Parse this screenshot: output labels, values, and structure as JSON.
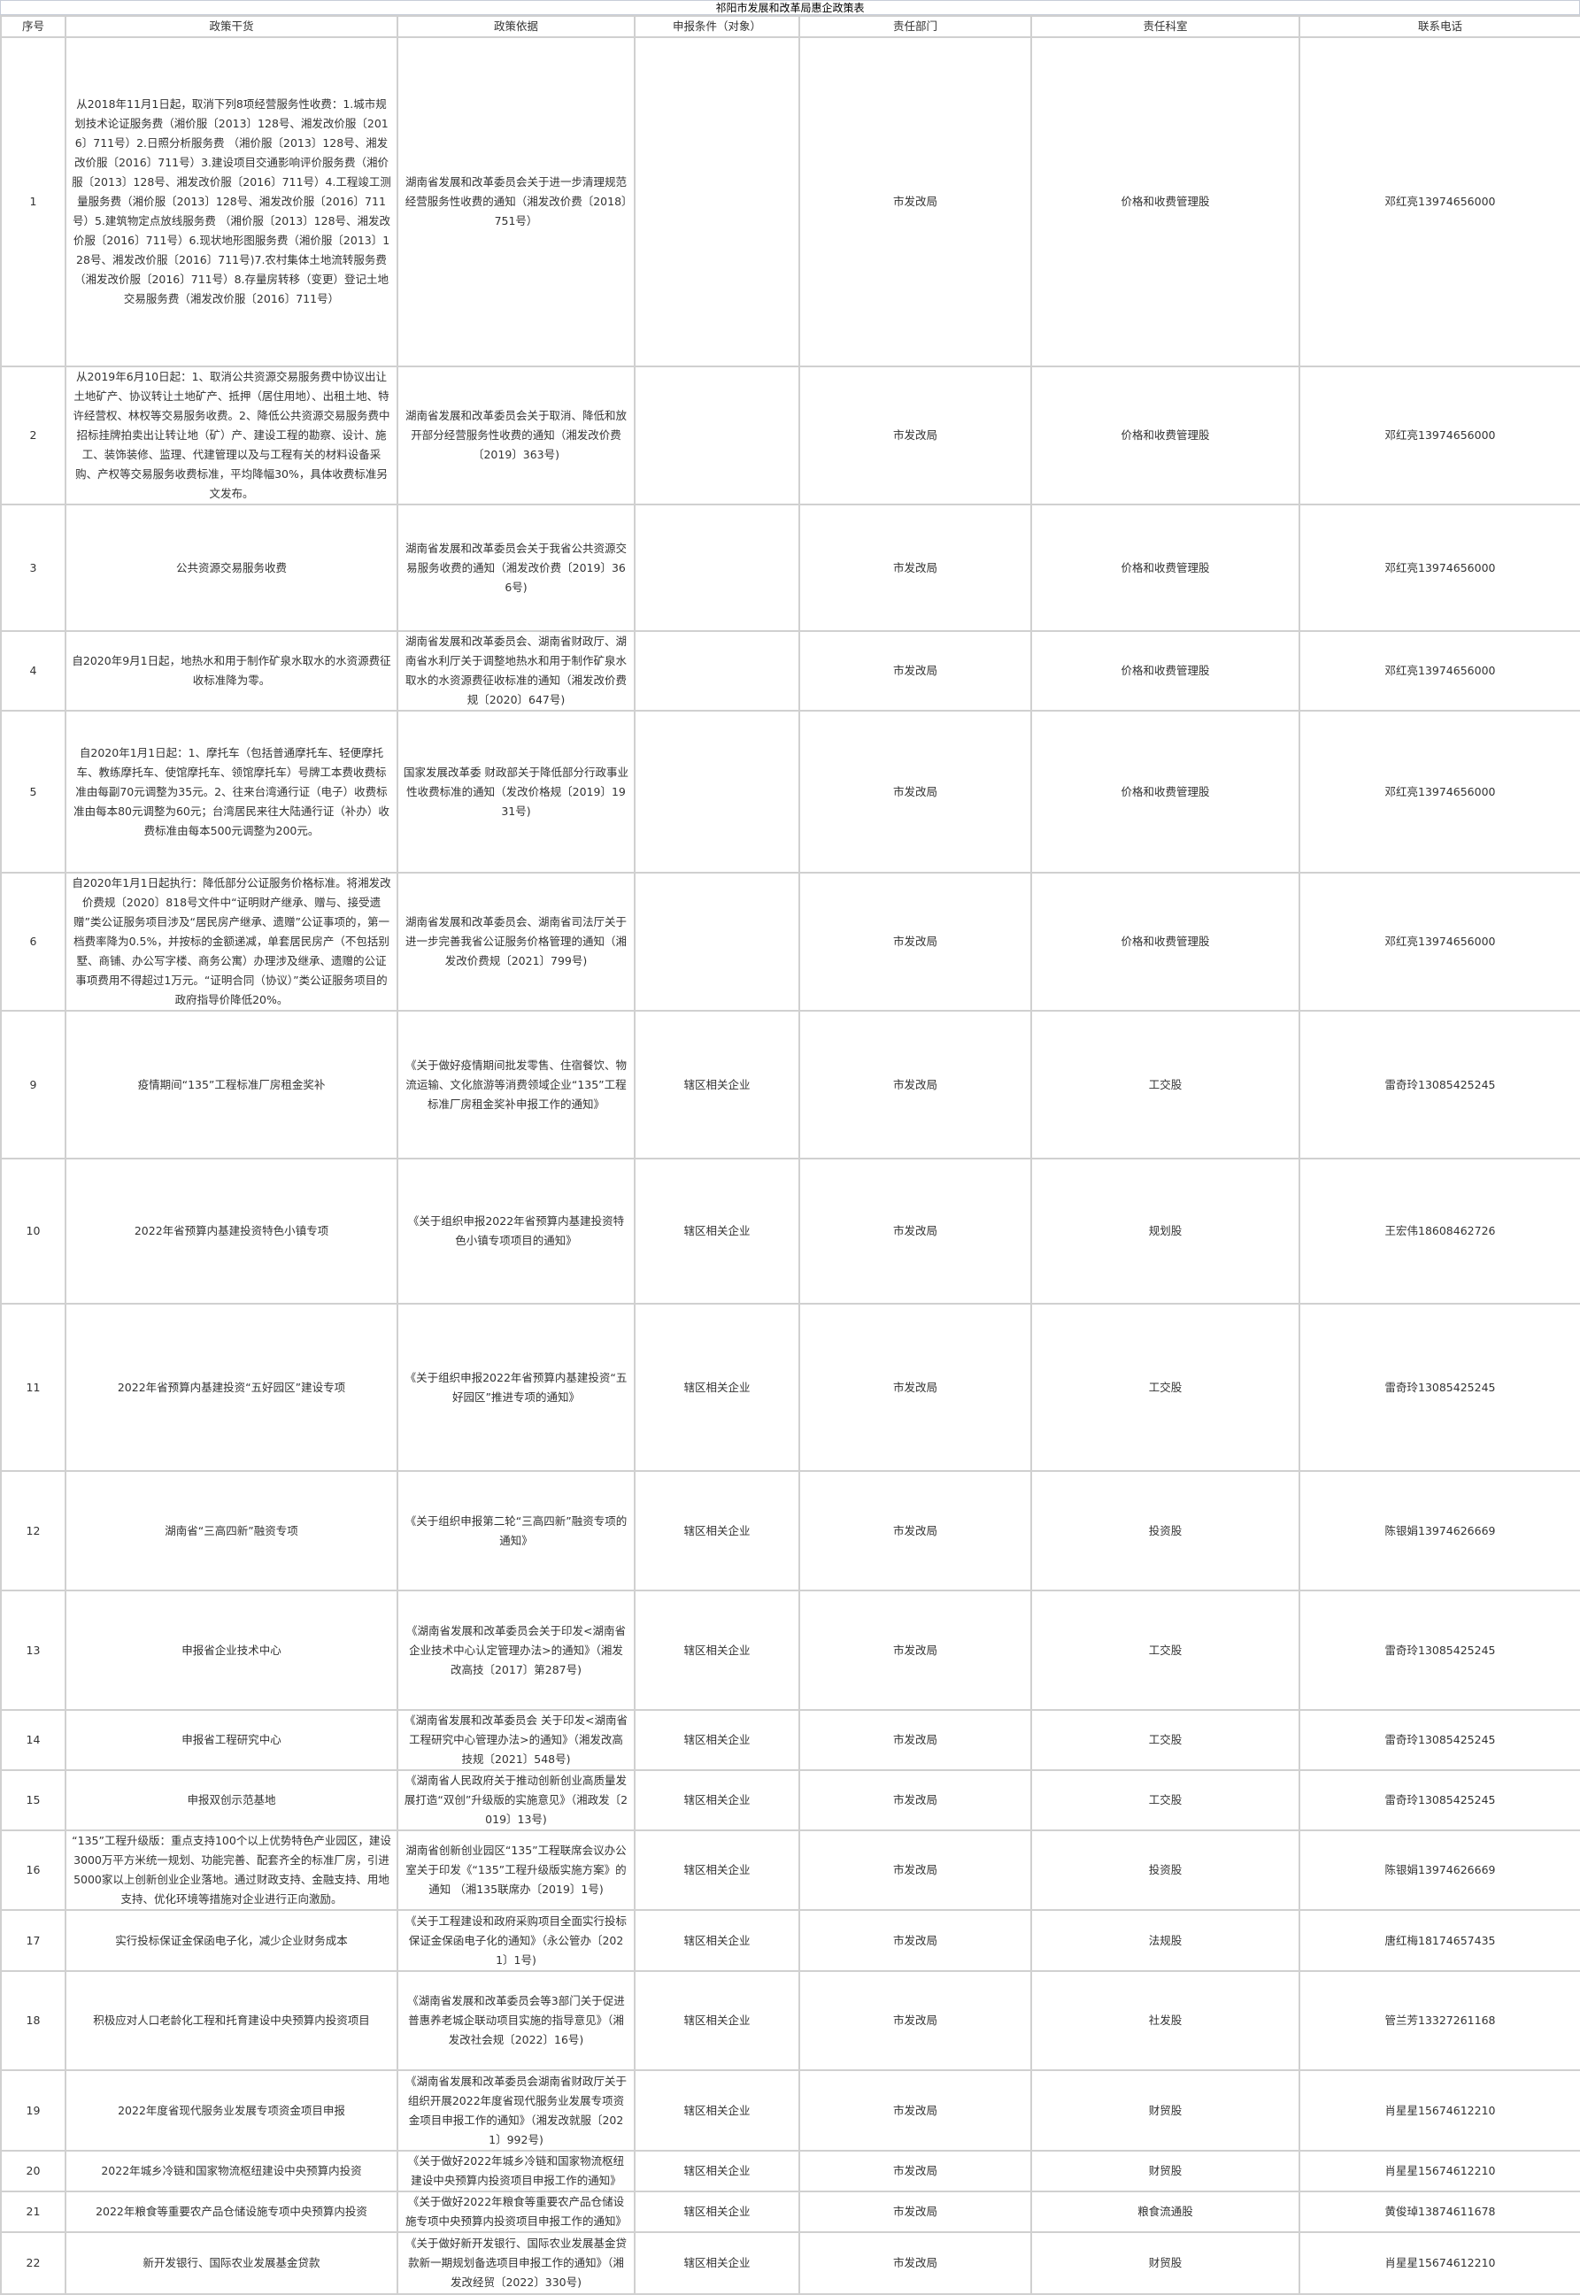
{
  "title": "祁阳市发展和改革局惠企政策表",
  "headers": [
    "序号",
    "政策干货",
    "政策依据",
    "申报条件（对象）",
    "责任部门",
    "责任科室",
    "联系电话"
  ],
  "rows": [
    {
      "no": "1",
      "content": "从2018年11月1日起，取消下列8项经营服务性收费：1.城市规划技术论证服务费（湘价服〔2013〕128号、湘发改价服〔2016〕711号）2.日照分析服务费 （湘价服〔2013〕128号、湘发改价服〔2016〕711号）3.建设项目交通影响评价服务费（湘价服〔2013〕128号、湘发改价服〔2016〕711号）4.工程竣工测量服务费（湘价服〔2013〕128号、湘发改价服〔2016〕711号）5.建筑物定点放线服务费 （湘价服〔2013〕128号、湘发改价服〔2016〕711号）6.现状地形图服务费（湘价服〔2013〕128号、湘发改价服〔2016〕711号)7.农村集体土地流转服务费（湘发改价服〔2016〕711号）8.存量房转移（变更）登记土地交易服务费（湘发改价服〔2016〕711号）",
      "basis": "湖南省发展和改革委员会关于进一步清理规范经营服务性收费的通知（湘发改价费〔2018〕751号）",
      "target": "",
      "dept": "市发改局",
      "office": "价格和收费管理股",
      "phone": "邓红亮13974656000"
    },
    {
      "no": "2",
      "content": "从2019年6月10日起：1、取消公共资源交易服务费中协议出让土地矿产、协议转让土地矿产、抵押（居住用地）、出租土地、特许经营权、林权等交易服务收费。2、降低公共资源交易服务费中招标挂牌拍卖出让转让地（矿）产、建设工程的勘察、设计、施工、装饰装修、监理、代建管理以及与工程有关的材料设备采购、产权等交易服务收费标准，平均降幅30%，具体收费标准另文发布。",
      "basis": "湖南省发展和改革委员会关于取消、降低和放开部分经营服务性收费的通知（湘发改价费〔2019〕363号)",
      "target": "",
      "dept": "市发改局",
      "office": "价格和收费管理股",
      "phone": "邓红亮13974656000"
    },
    {
      "no": "3",
      "content": "公共资源交易服务收费",
      "basis": "湖南省发展和改革委员会关于我省公共资源交易服务收费的通知（湘发改价费〔2019〕366号)",
      "target": "",
      "dept": "市发改局",
      "office": "价格和收费管理股",
      "phone": "邓红亮13974656000"
    },
    {
      "no": "4",
      "content": "自2020年9月1日起，地热水和用于制作矿泉水取水的水资源费征收标准降为零。",
      "basis": "湖南省发展和改革委员会、湖南省财政厅、湖南省水利厅关于调整地热水和用于制作矿泉水取水的水资源费征收标准的通知（湘发改价费规〔2020〕647号)",
      "target": "",
      "dept": "市发改局",
      "office": "价格和收费管理股",
      "phone": "邓红亮13974656000"
    },
    {
      "no": "5",
      "content": "自2020年1月1日起：1、摩托车（包括普通摩托车、轻便摩托车、教练摩托车、使馆摩托车、领馆摩托车）号牌工本费收费标准由每副70元调整为35元。2、往来台湾通行证（电子）收费标准由每本80元调整为60元；台湾居民来往大陆通行证（补办）收费标准由每本500元调整为200元。",
      "basis": "国家发展改革委 财政部关于降低部分行政事业性收费标准的通知（发改价格规〔2019〕1931号)",
      "target": "",
      "dept": "市发改局",
      "office": "价格和收费管理股",
      "phone": "邓红亮13974656000"
    },
    {
      "no": "6",
      "content": "自2020年1月1日起执行：降低部分公证服务价格标准。将湘发改价费规〔2020〕818号文件中“证明财产继承、赠与、接受遗赠”类公证服务项目涉及“居民房产继承、遗赠”公证事项的，第一档费率降为0.5%，并按标的金额递减，单套居民房产（不包括别墅、商铺、办公写字楼、商务公寓）办理涉及继承、遗赠的公证事项费用不得超过1万元。“证明合同（协议）”类公证服务项目的政府指导价降低20%。",
      "basis": "湖南省发展和改革委员会、湖南省司法厅关于进一步完善我省公证服务价格管理的通知（湘发改价费规〔2021〕799号)",
      "target": "",
      "dept": "市发改局",
      "office": "价格和收费管理股",
      "phone": "邓红亮13974656000"
    },
    {
      "no": "9",
      "content": "疫情期间“135”工程标准厂房租金奖补",
      "basis": "《关于做好疫情期间批发零售、住宿餐饮、物流运输、文化旅游等消费领域企业“135”工程标准厂房租金奖补申报工作的通知》",
      "target": "辖区相关企业",
      "dept": "市发改局",
      "office": "工交股",
      "phone": "雷奇玲13085425245"
    },
    {
      "no": "10",
      "content": "2022年省预算内基建投资特色小镇专项",
      "basis": "《关于组织申报2022年省预算内基建投资特色小镇专项项目的通知》",
      "target": "辖区相关企业",
      "dept": "市发改局",
      "office": "规划股",
      "phone": "王宏伟18608462726"
    },
    {
      "no": "11",
      "content": "2022年省预算内基建投资“五好园区”建设专项",
      "basis": "《关于组织申报2022年省预算内基建投资“五好园区”推进专项的通知》",
      "target": "辖区相关企业",
      "dept": "市发改局",
      "office": "工交股",
      "phone": "雷奇玲13085425245"
    },
    {
      "no": "12",
      "content": "湖南省“三高四新”融资专项",
      "basis": "《关于组织申报第二轮“三高四新”融资专项的通知》",
      "target": "辖区相关企业",
      "dept": "市发改局",
      "office": "投资股",
      "phone": "陈银娟13974626669"
    },
    {
      "no": "13",
      "content": "申报省企业技术中心",
      "basis": "《湖南省发展和改革委员会关于印发<湖南省企业技术中心认定管理办法>的通知》（湘发改高技〔2017〕第287号)",
      "target": "辖区相关企业",
      "dept": "市发改局",
      "office": "工交股",
      "phone": "雷奇玲13085425245"
    },
    {
      "no": "14",
      "content": "申报省工程研究中心",
      "basis": "《湖南省发展和改革委员会 关于印发<湖南省工程研究中心管理办法>的通知》（湘发改高技规〔2021〕548号)",
      "target": "辖区相关企业",
      "dept": "市发改局",
      "office": "工交股",
      "phone": "雷奇玲13085425245"
    },
    {
      "no": "15",
      "content": "申报双创示范基地",
      "basis": "《湖南省人民政府关于推动创新创业高质量发展打造“双创”升级版的实施意见》（湘政发〔2019〕13号)",
      "target": "辖区相关企业",
      "dept": "市发改局",
      "office": "工交股",
      "phone": "雷奇玲13085425245"
    },
    {
      "no": "16",
      "content": "“135”工程升级版：重点支持100个以上优势特色产业园区，建设3000万平方米统一规划、功能完善、配套齐全的标准厂房，引进5000家以上创新创业企业落地。通过财政支持、金融支持、用地支持、优化环境等措施对企业进行正向激励。",
      "basis": "湖南省创新创业园区“135”工程联席会议办公室关于印发《“135”工程升级版实施方案》的通知 （湘135联席办〔2019〕1号)",
      "target": "辖区相关企业",
      "dept": "市发改局",
      "office": "投资股",
      "phone": "陈银娟13974626669"
    },
    {
      "no": "17",
      "content": "实行投标保证金保函电子化，减少企业财务成本",
      "basis": "《关于工程建设和政府采购项目全面实行投标保证金保函电子化的通知》（永公管办〔2021〕1号)",
      "target": "辖区相关企业",
      "dept": "市发改局",
      "office": "法规股",
      "phone": "唐红梅18174657435"
    },
    {
      "no": "18",
      "content": "积极应对人口老龄化工程和托育建设中央预算内投资项目",
      "basis": "《湖南省发展和改革委员会等3部门关于促进普惠养老城企联动项目实施的指导意见》（湘发改社会规〔2022〕16号)",
      "target": "辖区相关企业",
      "dept": "市发改局",
      "office": "社发股",
      "phone": "管兰芳13327261168"
    },
    {
      "no": "19",
      "content": "2022年度省现代服务业发展专项资金项目申报",
      "basis": "《湖南省发展和改革委员会湖南省财政厅关于组织开展2022年度省现代服务业发展专项资金项目申报工作的通知》（湘发改就服〔2021〕992号)",
      "target": "辖区相关企业",
      "dept": "市发改局",
      "office": "财贸股",
      "phone": "肖星星15674612210"
    },
    {
      "no": "20",
      "content": "2022年城乡冷链和国家物流枢纽建设中央预算内投资",
      "basis": "《关于做好2022年城乡冷链和国家物流枢纽建设中央预算内投资项目申报工作的通知》",
      "target": "辖区相关企业",
      "dept": "市发改局",
      "office": "财贸股",
      "phone": "肖星星15674612210"
    },
    {
      "no": "21",
      "content": "2022年粮食等重要农产品仓储设施专项中央预算内投资",
      "basis": "《关于做好2022年粮食等重要农产品仓储设施专项中央预算内投资项目申报工作的通知》",
      "target": "辖区相关企业",
      "dept": "市发改局",
      "office": "粮食流通股",
      "phone": "黄俊琸13874611678"
    },
    {
      "no": "22",
      "content": "新开发银行、国际农业发展基金贷款",
      "basis": "《关于做好新开发银行、国际农业发展基金贷款新一期规划备选项目申报工作的通知》（湘发改经贸〔2022〕330号)",
      "target": "辖区相关企业",
      "dept": "市发改局",
      "office": "财贸股",
      "phone": "肖星星15674612210"
    }
  ]
}
